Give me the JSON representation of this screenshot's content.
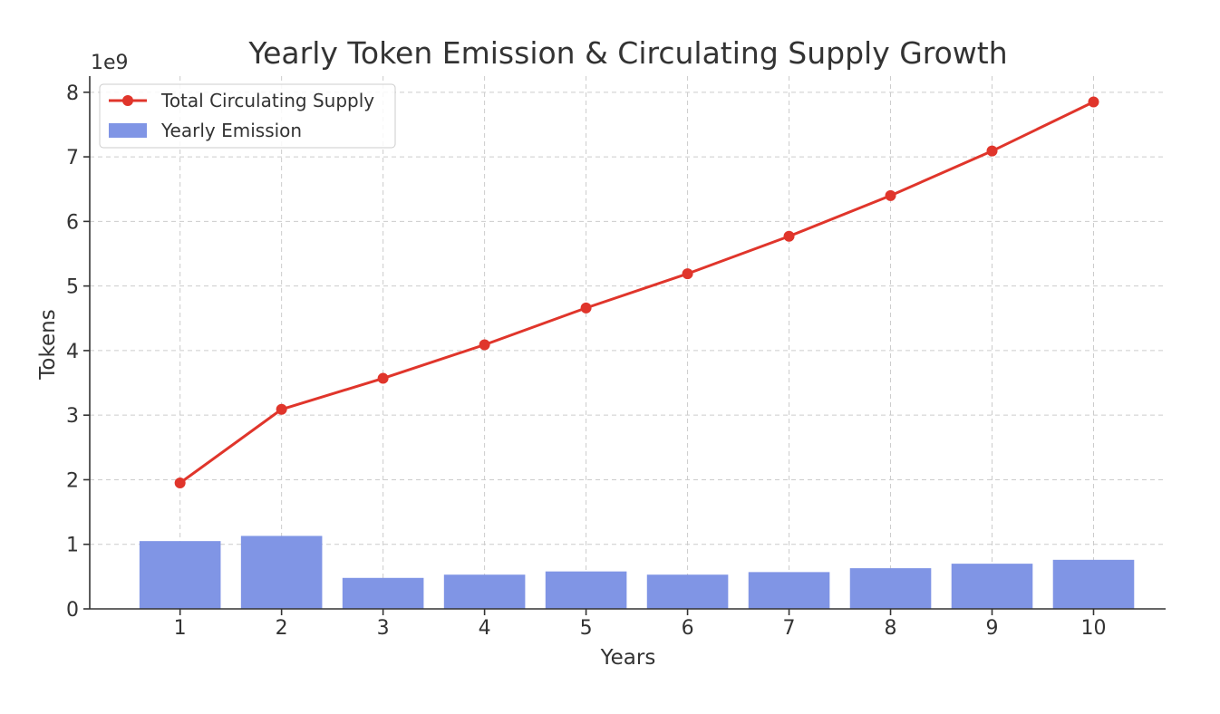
{
  "chart_data": {
    "type": "bar",
    "title": "Yearly Token Emission & Circulating Supply Growth",
    "xlabel": "Years",
    "ylabel": "Tokens",
    "y_offset_label": "1e9",
    "categories": [
      "1",
      "2",
      "3",
      "4",
      "5",
      "6",
      "7",
      "8",
      "9",
      "10"
    ],
    "ylim": [
      0,
      8.25
    ],
    "y_scale": 1000000000,
    "y_ticks": [
      0,
      1,
      2,
      3,
      4,
      5,
      6,
      7,
      8
    ],
    "grid": true,
    "legend_position": "top-left",
    "series": [
      {
        "name": "Total Circulating Supply",
        "type": "line",
        "color": "#e0352b",
        "values": [
          1.95,
          3.09,
          3.57,
          4.09,
          4.66,
          5.19,
          5.77,
          6.4,
          7.09,
          7.85
        ]
      },
      {
        "name": "Yearly Emission",
        "type": "bar",
        "color": "#8095e5",
        "values": [
          1.05,
          1.13,
          0.48,
          0.53,
          0.58,
          0.53,
          0.57,
          0.63,
          0.7,
          0.76
        ]
      }
    ]
  }
}
